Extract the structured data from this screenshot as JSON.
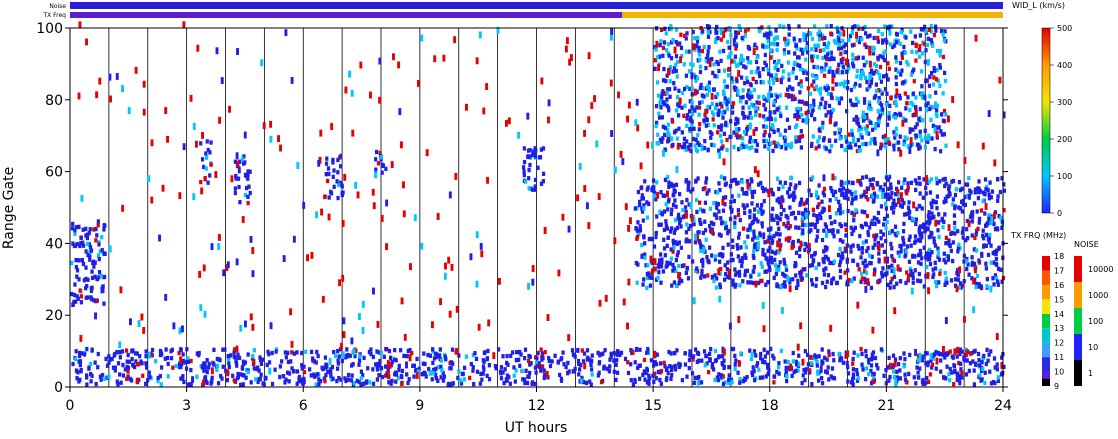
{
  "chart_data": {
    "type": "heatmap",
    "title": "",
    "xlabel": "UT hours",
    "ylabel": "Range Gate",
    "xlim": [
      0,
      24
    ],
    "ylim": [
      0,
      100
    ],
    "x_ticks": [
      "0",
      "3",
      "6",
      "9",
      "12",
      "15",
      "18",
      "21",
      "24"
    ],
    "y_ticks": [
      "0",
      "20",
      "40",
      "60",
      "80",
      "100"
    ],
    "top_bars": {
      "noise_label": "Noise",
      "txfreq_label": "TX Freq",
      "txfreq_change_hour": 14.2
    },
    "scan_boundaries_hours": [
      1,
      2,
      3,
      4,
      5,
      6,
      7,
      8,
      9,
      10,
      11,
      12,
      13,
      14,
      15,
      16,
      17,
      18,
      19,
      20,
      21,
      22,
      23
    ],
    "colorbar": {
      "label": "WID_L (km/s)",
      "ticks": [
        "0",
        "100",
        "200",
        "300",
        "400",
        "500"
      ],
      "range": [
        0,
        500
      ]
    },
    "freq_bar": {
      "label": "TX FRQ (MHz)",
      "ticks": [
        "9",
        "10",
        "11",
        "12",
        "13",
        "14",
        "15",
        "16",
        "17",
        "18"
      ]
    },
    "noise_bar": {
      "label": "NOISE",
      "ticks": [
        "1",
        "10",
        "100",
        "1000",
        "10000"
      ]
    },
    "features": [
      {
        "name": "early echo band",
        "x": [
          0.0,
          0.9
        ],
        "y": [
          22,
          46
        ],
        "level": "low"
      },
      {
        "name": "main echo band",
        "x": [
          14.5,
          24.0
        ],
        "y": [
          27,
          58
        ],
        "level": "low"
      },
      {
        "name": "near-range echoes",
        "x": [
          0,
          24
        ],
        "y": [
          0,
          10
        ],
        "level": "low"
      },
      {
        "name": "high-range patches",
        "x": [
          15,
          22.5
        ],
        "y": [
          65,
          100
        ],
        "level": "low-mid"
      },
      {
        "name": "isolated patch",
        "x": [
          3.3,
          3.6
        ],
        "y": [
          56,
          68
        ],
        "level": "low"
      },
      {
        "name": "isolated patch",
        "x": [
          4.2,
          4.6
        ],
        "y": [
          50,
          64
        ],
        "level": "low"
      },
      {
        "name": "isolated patch",
        "x": [
          6.5,
          7.0
        ],
        "y": [
          52,
          64
        ],
        "level": "low"
      },
      {
        "name": "isolated patch",
        "x": [
          7.8,
          8.1
        ],
        "y": [
          57,
          66
        ],
        "level": "low"
      },
      {
        "name": "isolated patch",
        "x": [
          11.6,
          12.2
        ],
        "y": [
          54,
          66
        ],
        "level": "low"
      }
    ],
    "colors": {
      "low": "#1f1fe6",
      "mid": "#00c8ff",
      "high": "#e60000",
      "noise_bar": "#2a1fd8",
      "freq_low": "#5a1fd0",
      "freq_high": "#f2b400"
    }
  }
}
